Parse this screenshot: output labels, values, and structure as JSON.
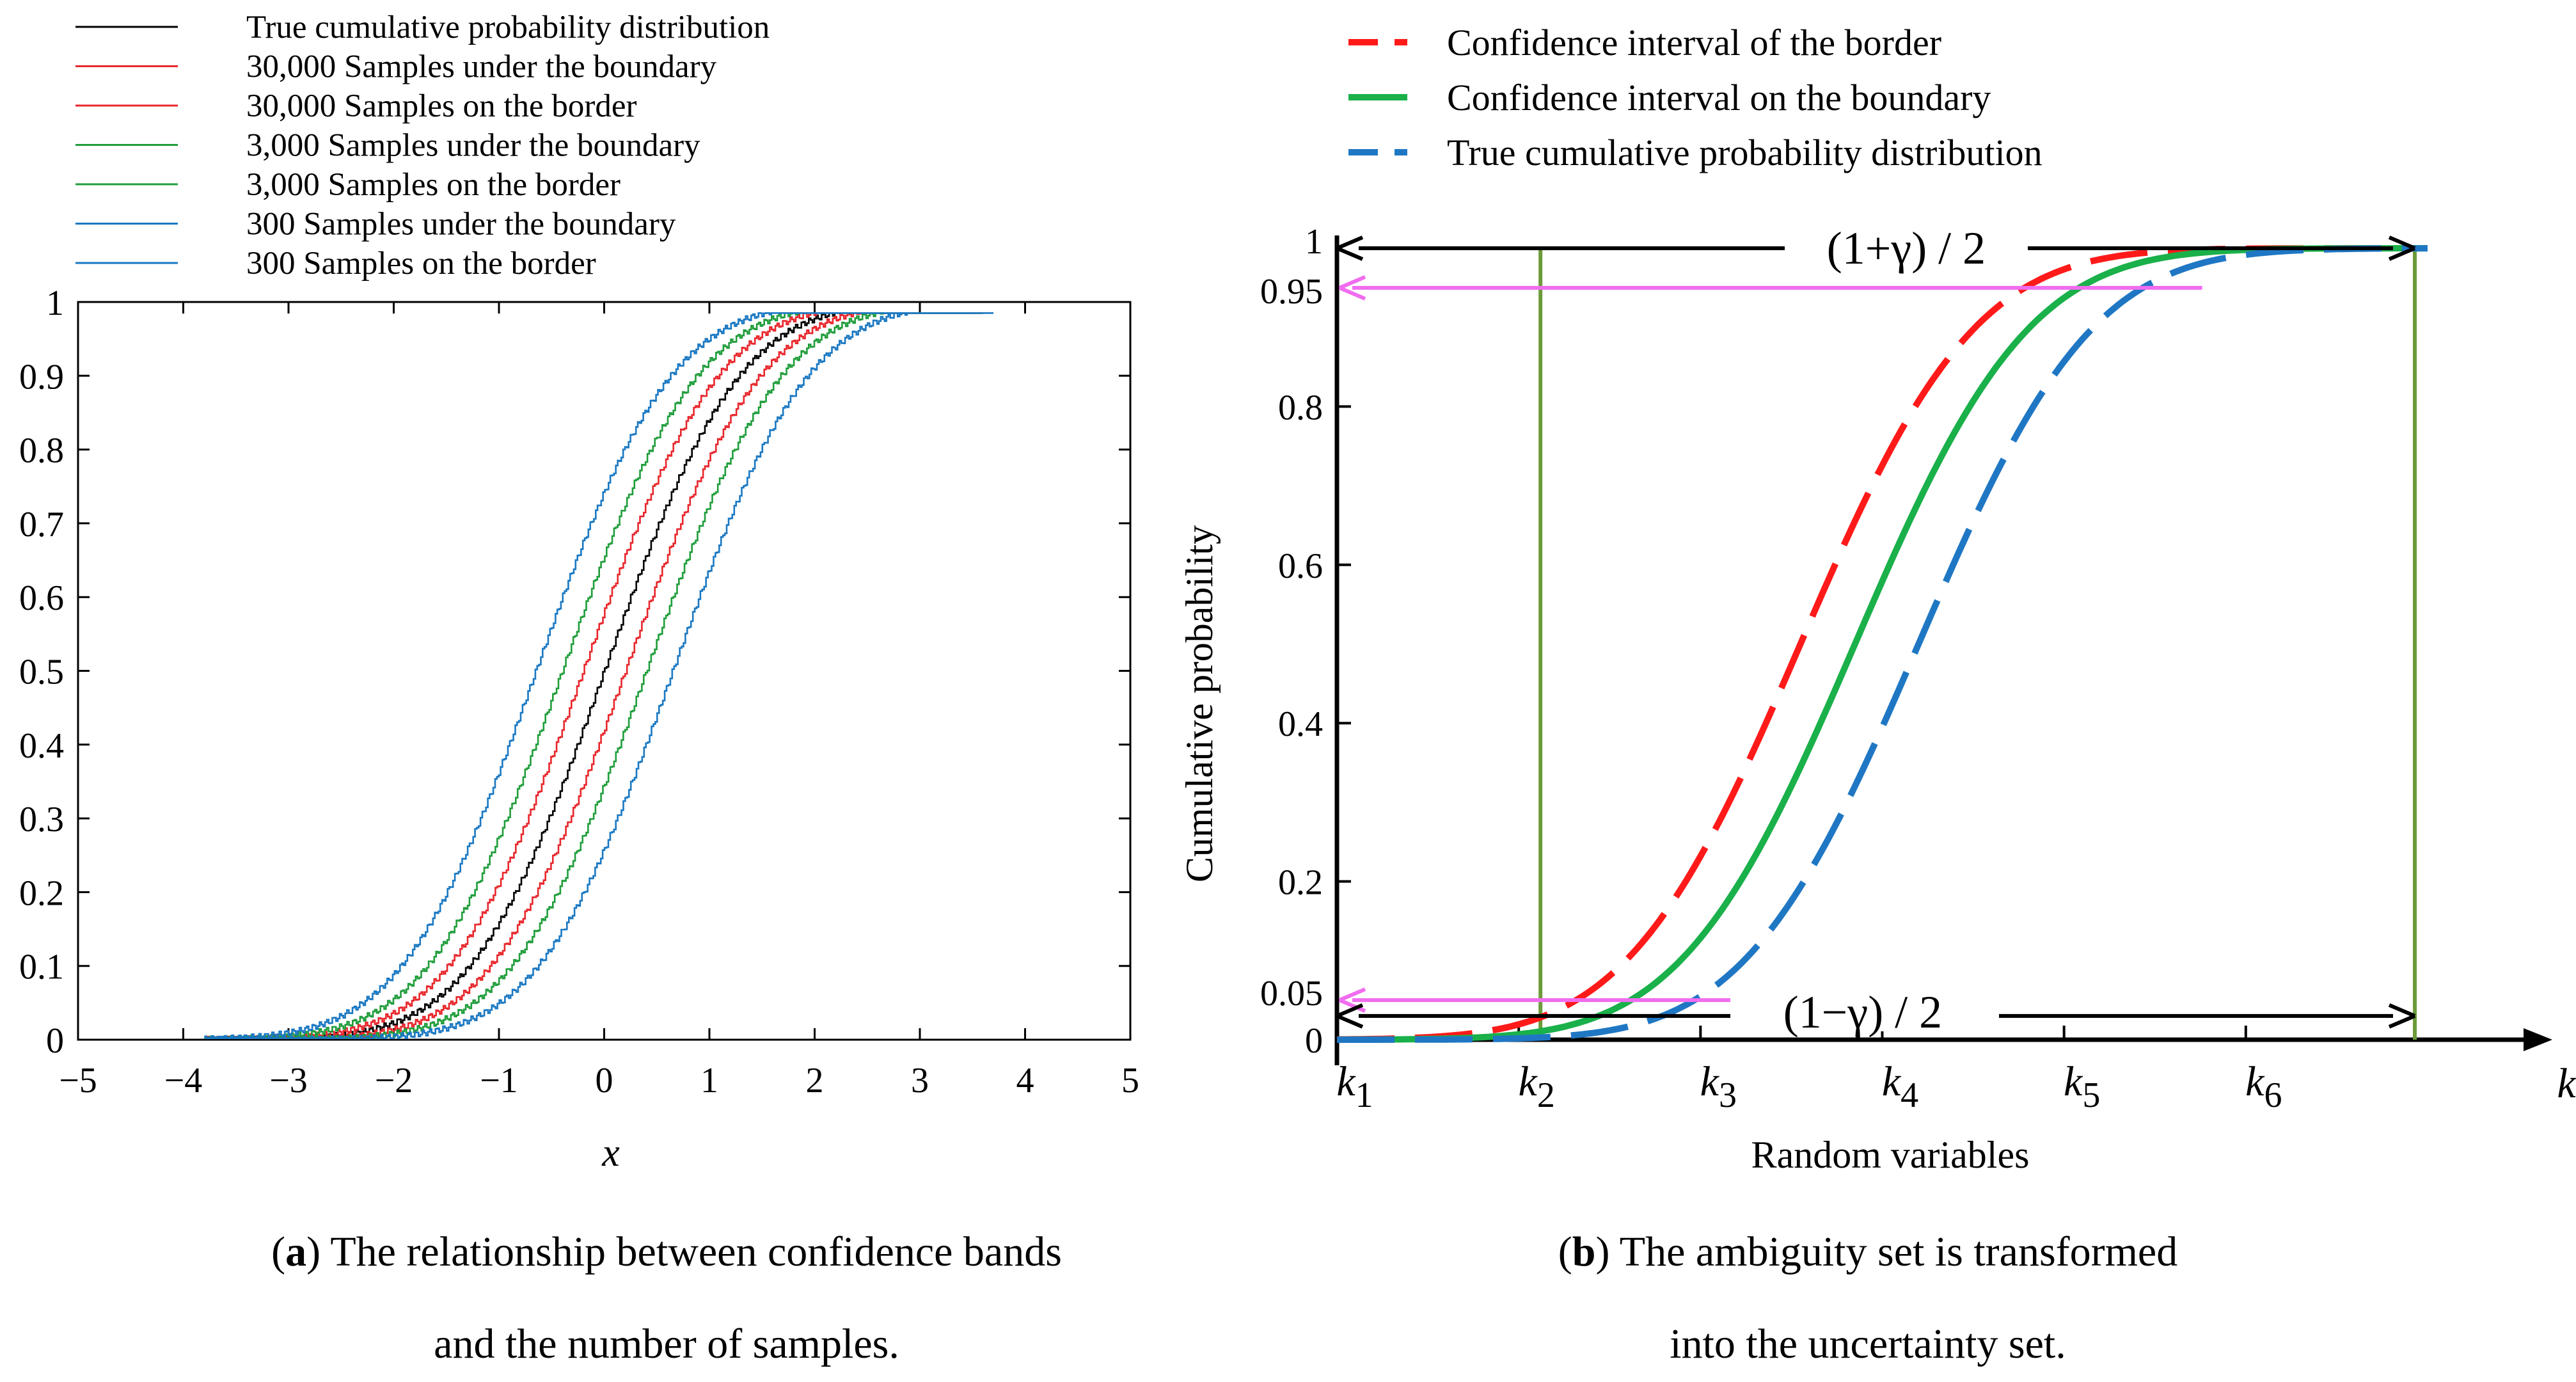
{
  "colors": {
    "black": "#000000",
    "red": "#e8262b",
    "green": "#1f9d3a",
    "blue": "#1f4fd8",
    "cyan_blue": "#1a78c2",
    "olive": "#6b9b3a",
    "magenta": "#f06cf0",
    "b_red": "#ff1a1a",
    "b_green": "#1ab04a",
    "b_blue": "#1f77c4"
  },
  "chart_data": [
    {
      "type": "line",
      "panel": "a",
      "title": "",
      "xlabel": "x",
      "ylabel": "",
      "xlim": [
        -5,
        5
      ],
      "ylim": [
        0,
        1
      ],
      "xticks": [
        "−5",
        "−4",
        "−3",
        "−2",
        "−1",
        "0",
        "1",
        "2",
        "3",
        "4",
        "5"
      ],
      "yticks": [
        "0",
        "0.1",
        "0.2",
        "0.3",
        "0.4",
        "0.5",
        "0.6",
        "0.7",
        "0.8",
        "0.9",
        "1"
      ],
      "legend": [
        "True cumulative probability distribution",
        "30,000 Samples under the boundary",
        "30,000 Samples on the border",
        "3,000 Samples under the boundary",
        "3,000 Samples on the border",
        "300 Samples under the boundary",
        "300 Samples on the border"
      ],
      "series": [
        {
          "name": "True cumulative probability distribution",
          "color": "black",
          "mean": 0,
          "sd": 1,
          "x_range": [
            -3.8,
            3.6
          ]
        },
        {
          "name": "30,000 Samples under the boundary",
          "color": "red",
          "mean": 0.2,
          "sd": 1,
          "x_range": [
            -3.8,
            3.6
          ]
        },
        {
          "name": "30,000 Samples on the border",
          "color": "red",
          "mean": -0.2,
          "sd": 1,
          "x_range": [
            -3.8,
            3.6
          ]
        },
        {
          "name": "3,000 Samples under the boundary",
          "color": "green",
          "mean": 0.4,
          "sd": 1,
          "x_range": [
            -3.8,
            3.6
          ]
        },
        {
          "name": "3,000 Samples on the border",
          "color": "green",
          "mean": -0.4,
          "sd": 1,
          "x_range": [
            -3.8,
            3.6
          ]
        },
        {
          "name": "300 Samples under the boundary",
          "color": "cyan_blue",
          "mean": 0.65,
          "sd": 1,
          "x_range": [
            -3.8,
            3.7
          ]
        },
        {
          "name": "300 Samples on the border",
          "color": "cyan_blue",
          "mean": -0.65,
          "sd": 1,
          "x_range": [
            -3.8,
            3.5
          ]
        }
      ],
      "caption_bold": "a",
      "caption_line1": ") The relationship between confidence bands",
      "caption_line2": "and the number of samples."
    },
    {
      "type": "line",
      "panel": "b",
      "title": "",
      "xlabel": "Random variables",
      "ylabel": "Cumulative probability",
      "xlim": [
        0,
        6
      ],
      "ylim": [
        0,
        1
      ],
      "yticks": [
        "0",
        "0.05",
        "0.2",
        "0.4",
        "0.6",
        "0.8",
        "0.95",
        "1"
      ],
      "xticks": [
        {
          "base": "k",
          "sub": "1"
        },
        {
          "base": "k",
          "sub": "2"
        },
        {
          "base": "k",
          "sub": "3"
        },
        {
          "base": "k",
          "sub": "4"
        },
        {
          "base": "k",
          "sub": "5"
        },
        {
          "base": "k",
          "sub": "6"
        }
      ],
      "axis_end_label": "k",
      "legend": [
        "Confidence interval of the border",
        "Confidence interval on the boundary",
        "True cumulative probability distribution"
      ],
      "series": [
        {
          "name": "Confidence interval of the border",
          "color": "b_red",
          "style": "dashed",
          "mean": 2.55,
          "sd": 0.75
        },
        {
          "name": "Confidence interval on the boundary",
          "color": "b_green",
          "style": "solid",
          "mean": 2.85,
          "sd": 0.75
        },
        {
          "name": "True cumulative probability distribution",
          "color": "b_blue",
          "style": "dashed",
          "mean": 3.2,
          "sd": 0.75
        }
      ],
      "annotations": [
        {
          "text": "(1+γ) / 2",
          "y": 1.0
        },
        {
          "text": "(1−γ) / 2",
          "y": 0.03
        }
      ],
      "caption_bold": "b",
      "caption_line1": ") The ambiguity set is transformed",
      "caption_line2": "into the uncertainty set."
    }
  ]
}
